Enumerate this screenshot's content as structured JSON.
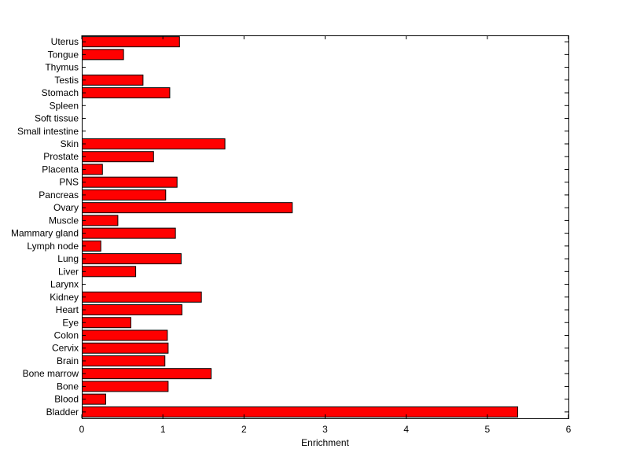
{
  "chart_data": {
    "type": "bar",
    "orientation": "horizontal",
    "categories": [
      "Bladder",
      "Blood",
      "Bone",
      "Bone marrow",
      "Brain",
      "Cervix",
      "Colon",
      "Eye",
      "Heart",
      "Kidney",
      "Larynx",
      "Liver",
      "Lung",
      "Lymph node",
      "Mammary gland",
      "Muscle",
      "Ovary",
      "Pancreas",
      "PNS",
      "Placenta",
      "Prostate",
      "Skin",
      "Small intestine",
      "Soft tissue",
      "Spleen",
      "Stomach",
      "Testis",
      "Thymus",
      "Tongue",
      "Uterus"
    ],
    "values": [
      5.37,
      0.29,
      1.06,
      1.59,
      1.02,
      1.06,
      1.05,
      0.6,
      1.23,
      1.47,
      0,
      0.66,
      1.22,
      0.23,
      1.15,
      0.44,
      2.59,
      1.03,
      1.17,
      0.25,
      0.88,
      1.76,
      0,
      0,
      0,
      1.08,
      0.75,
      0,
      0.51,
      1.2
    ],
    "xlabel": "Enrichment",
    "ylabel": "",
    "title": "",
    "xlim": [
      0,
      6
    ],
    "xticks": [
      0,
      1,
      2,
      3,
      4,
      5,
      6
    ],
    "grid": false,
    "bar_color": "#ff0000",
    "bar_edge_color": "#000000"
  }
}
